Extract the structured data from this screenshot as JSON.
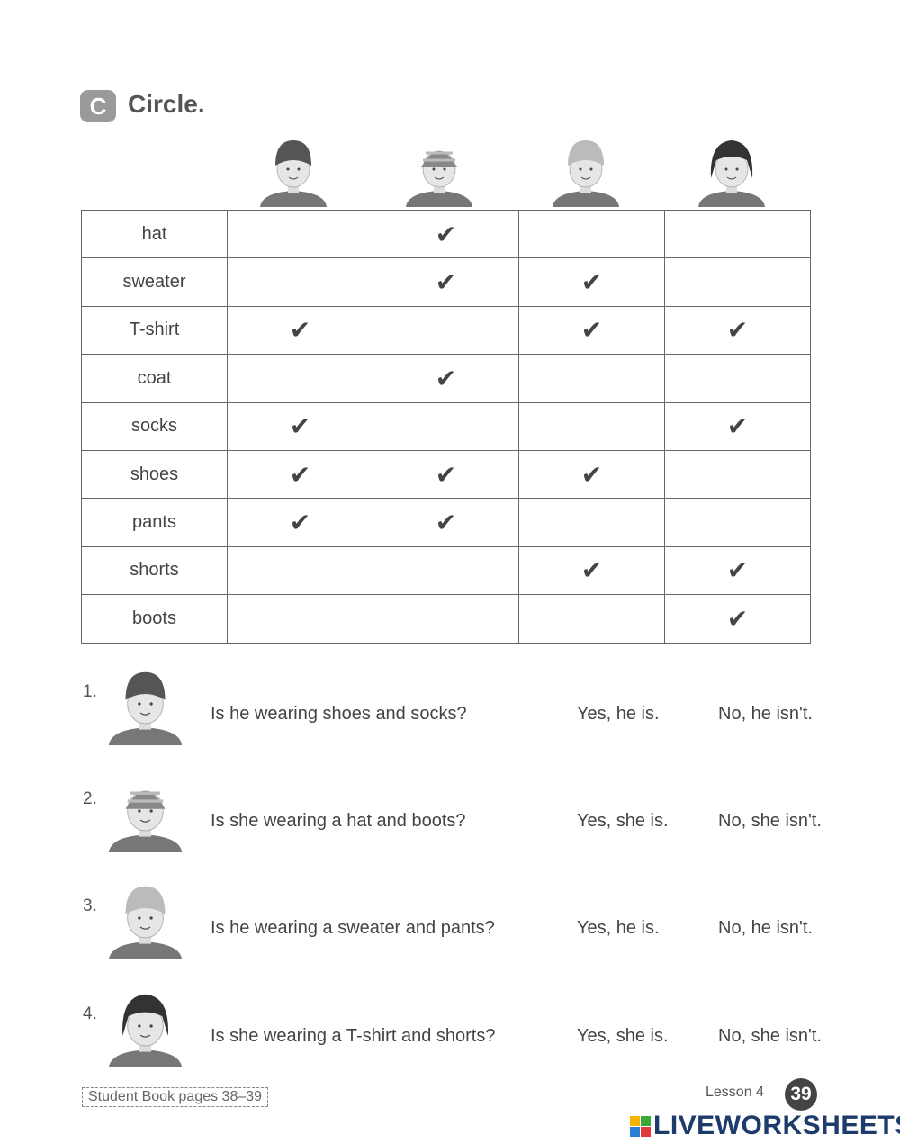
{
  "header": {
    "badge": "C",
    "title": "Circle."
  },
  "table": {
    "rows": [
      {
        "label": "hat",
        "checks": [
          false,
          true,
          false,
          false
        ]
      },
      {
        "label": "sweater",
        "checks": [
          false,
          true,
          true,
          false
        ]
      },
      {
        "label": "T-shirt",
        "checks": [
          true,
          false,
          true,
          true
        ]
      },
      {
        "label": "coat",
        "checks": [
          false,
          true,
          false,
          false
        ]
      },
      {
        "label": "socks",
        "checks": [
          true,
          false,
          false,
          true
        ]
      },
      {
        "label": "shoes",
        "checks": [
          true,
          true,
          true,
          false
        ]
      },
      {
        "label": "pants",
        "checks": [
          true,
          true,
          false,
          false
        ]
      },
      {
        "label": "shorts",
        "checks": [
          false,
          false,
          true,
          true
        ]
      },
      {
        "label": "boots",
        "checks": [
          false,
          false,
          false,
          true
        ]
      }
    ],
    "check_mark": "✔"
  },
  "questions": [
    {
      "number": "1.",
      "question": "Is he wearing shoes and socks?",
      "yes": "Yes, he is.",
      "no": "No, he isn't."
    },
    {
      "number": "2.",
      "question": "Is she wearing a hat and boots?",
      "yes": "Yes, she is.",
      "no": "No, she isn't."
    },
    {
      "number": "3.",
      "question": "Is he wearing a sweater and pants?",
      "yes": "Yes, he is.",
      "no": "No, he isn't."
    },
    {
      "number": "4.",
      "question": "Is she wearing a T-shirt and shorts?",
      "yes": "Yes, she is.",
      "no": "No, she isn't."
    }
  ],
  "footer": {
    "book": "Student Book pages 38–39",
    "lesson": "Lesson 4",
    "page": "39",
    "logo": "LIVEWORKSHEETS"
  },
  "colors": {
    "logo": "#1d3b6b"
  }
}
